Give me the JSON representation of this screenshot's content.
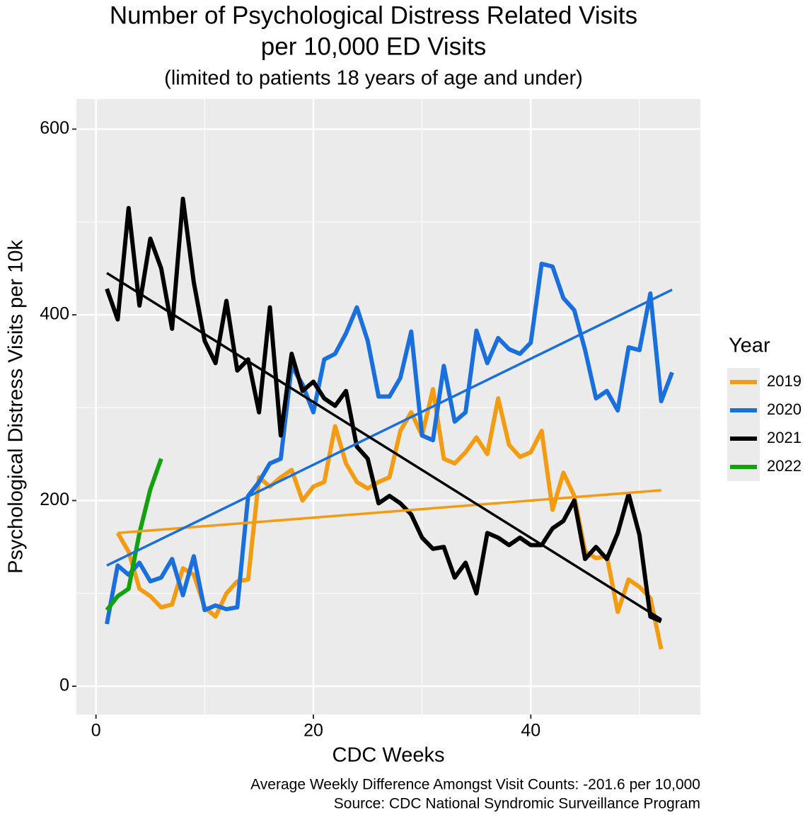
{
  "chart_data": {
    "type": "line",
    "title": [
      "Number of Psychological Distress Related Visits",
      "per 10,000 ED Visits"
    ],
    "subtitle": "(limited to patients 18 years of age and under)",
    "x_label": "CDC Weeks",
    "y_label": "Psychological Distress Visits per 10k",
    "caption": [
      "Average Weekly Difference Amongst Visit Counts: -201.6 per 10,000",
      "Source: CDC National Syndromic Surveillance Program"
    ],
    "legend_title": "Year",
    "legend_position": "right",
    "grid": true,
    "background": "#ebebeb",
    "xlim": [
      -1.8,
      55.6
    ],
    "ylim": [
      -30.5,
      632.4
    ],
    "xticks": [
      0,
      20,
      40
    ],
    "yticks": [
      0,
      200,
      400,
      600
    ],
    "x_minor_grid": [
      10,
      30,
      50
    ],
    "y_minor_grid": [
      100,
      300,
      500
    ],
    "series": [
      {
        "name": "2019",
        "color": "#f39c12",
        "x": [
          2,
          3,
          4,
          5,
          6,
          7,
          8,
          9,
          10,
          11,
          12,
          13,
          14,
          15,
          16,
          17,
          18,
          19,
          20,
          21,
          22,
          23,
          24,
          25,
          26,
          27,
          28,
          29,
          30,
          31,
          32,
          33,
          34,
          35,
          36,
          37,
          38,
          39,
          40,
          41,
          42,
          43,
          44,
          45,
          46,
          47,
          48,
          49,
          50,
          51,
          52
        ],
        "values": [
          165,
          145,
          105,
          97,
          85,
          88,
          127,
          120,
          85,
          75,
          100,
          113,
          115,
          225,
          215,
          225,
          233,
          200,
          215,
          220,
          280,
          240,
          220,
          213,
          220,
          225,
          275,
          295,
          270,
          320,
          245,
          240,
          252,
          268,
          250,
          310,
          260,
          247,
          252,
          275,
          190,
          230,
          205,
          145,
          138,
          140,
          80,
          115,
          107,
          95,
          40
        ]
      },
      {
        "name": "2020",
        "color": "#1a6fdf",
        "x": [
          1,
          2,
          3,
          4,
          5,
          6,
          7,
          8,
          9,
          10,
          11,
          12,
          13,
          14,
          15,
          16,
          17,
          18,
          19,
          20,
          21,
          22,
          23,
          24,
          25,
          26,
          27,
          28,
          29,
          30,
          31,
          32,
          33,
          34,
          35,
          36,
          37,
          38,
          39,
          40,
          41,
          42,
          43,
          44,
          45,
          46,
          47,
          48,
          49,
          50,
          51,
          52,
          53
        ],
        "values": [
          67,
          130,
          120,
          133,
          113,
          117,
          137,
          98,
          140,
          82,
          87,
          83,
          85,
          205,
          220,
          240,
          245,
          345,
          325,
          295,
          352,
          358,
          380,
          408,
          372,
          312,
          312,
          332,
          382,
          270,
          265,
          345,
          285,
          295,
          383,
          348,
          375,
          363,
          358,
          370,
          455,
          452,
          418,
          405,
          362,
          310,
          318,
          297,
          365,
          362,
          423,
          307,
          338
        ]
      },
      {
        "name": "2021",
        "color": "#000000",
        "x": [
          1,
          2,
          3,
          4,
          5,
          6,
          7,
          8,
          9,
          10,
          11,
          12,
          13,
          14,
          15,
          16,
          17,
          18,
          19,
          20,
          21,
          22,
          23,
          24,
          25,
          26,
          27,
          28,
          29,
          30,
          31,
          32,
          33,
          34,
          35,
          36,
          37,
          38,
          39,
          40,
          41,
          42,
          43,
          44,
          45,
          46,
          47,
          48,
          49,
          50,
          51,
          52
        ],
        "values": [
          428,
          395,
          515,
          410,
          482,
          450,
          385,
          525,
          435,
          372,
          348,
          415,
          340,
          352,
          295,
          408,
          270,
          358,
          318,
          328,
          310,
          302,
          318,
          258,
          245,
          197,
          205,
          197,
          185,
          160,
          148,
          150,
          117,
          133,
          100,
          165,
          160,
          152,
          160,
          152,
          152,
          170,
          178,
          200,
          137,
          150,
          137,
          165,
          207,
          163,
          75,
          70
        ]
      },
      {
        "name": "2022",
        "color": "#13a10e",
        "x": [
          1,
          2,
          3,
          4,
          5,
          6
        ],
        "values": [
          82,
          97,
          105,
          165,
          212,
          245
        ]
      }
    ],
    "trend_lines": [
      {
        "color": "#f39c12",
        "x": [
          2,
          52
        ],
        "values": [
          165,
          211
        ]
      },
      {
        "color": "#1a6fdf",
        "x": [
          1,
          53
        ],
        "values": [
          130,
          427
        ]
      },
      {
        "color": "#000000",
        "x": [
          1,
          52
        ],
        "values": [
          445,
          72
        ]
      }
    ]
  }
}
